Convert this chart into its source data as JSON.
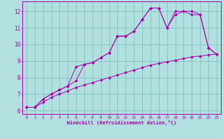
{
  "background_color": "#b2e0e0",
  "grid_color": "#80c0c0",
  "line_color": "#aa00aa",
  "marker": "D",
  "marker_size": 2,
  "xlabel": "Windchill (Refroidissement éolien,°C)",
  "xlim": [
    -0.5,
    23.5
  ],
  "ylim": [
    5.8,
    12.6
  ],
  "xticks": [
    0,
    1,
    2,
    3,
    4,
    5,
    6,
    7,
    8,
    9,
    10,
    11,
    12,
    13,
    14,
    15,
    16,
    17,
    18,
    19,
    20,
    21,
    22,
    23
  ],
  "yticks": [
    6,
    7,
    8,
    9,
    10,
    11,
    12
  ],
  "line1_x": [
    0,
    1,
    2,
    3,
    4,
    5,
    6,
    7,
    8,
    9,
    10,
    11,
    12,
    13,
    14,
    15,
    16,
    17,
    18,
    19,
    20,
    21,
    22,
    23
  ],
  "line1_y": [
    6.2,
    6.2,
    6.7,
    7.0,
    7.25,
    7.5,
    8.65,
    8.8,
    8.9,
    9.2,
    9.5,
    10.5,
    10.5,
    10.8,
    11.5,
    12.2,
    12.2,
    11.0,
    12.0,
    12.0,
    11.8,
    11.8,
    9.8,
    9.4
  ],
  "line2_x": [
    0,
    1,
    2,
    3,
    4,
    5,
    6,
    7,
    8,
    9,
    10,
    11,
    12,
    13,
    14,
    15,
    16,
    17,
    18,
    19,
    20,
    21,
    22,
    23
  ],
  "line2_y": [
    6.2,
    6.2,
    6.7,
    7.0,
    7.25,
    7.5,
    7.8,
    8.8,
    8.9,
    9.2,
    9.5,
    10.5,
    10.5,
    10.8,
    11.5,
    12.2,
    12.2,
    11.0,
    11.8,
    12.0,
    12.0,
    11.8,
    9.8,
    9.4
  ],
  "line3_x": [
    0,
    1,
    2,
    3,
    4,
    5,
    6,
    7,
    8,
    9,
    10,
    11,
    12,
    13,
    14,
    15,
    16,
    17,
    18,
    19,
    20,
    21,
    22,
    23
  ],
  "line3_y": [
    6.2,
    6.2,
    6.5,
    6.8,
    7.0,
    7.2,
    7.4,
    7.55,
    7.7,
    7.85,
    8.0,
    8.15,
    8.3,
    8.45,
    8.6,
    8.75,
    8.85,
    8.95,
    9.05,
    9.15,
    9.25,
    9.3,
    9.37,
    9.42
  ]
}
